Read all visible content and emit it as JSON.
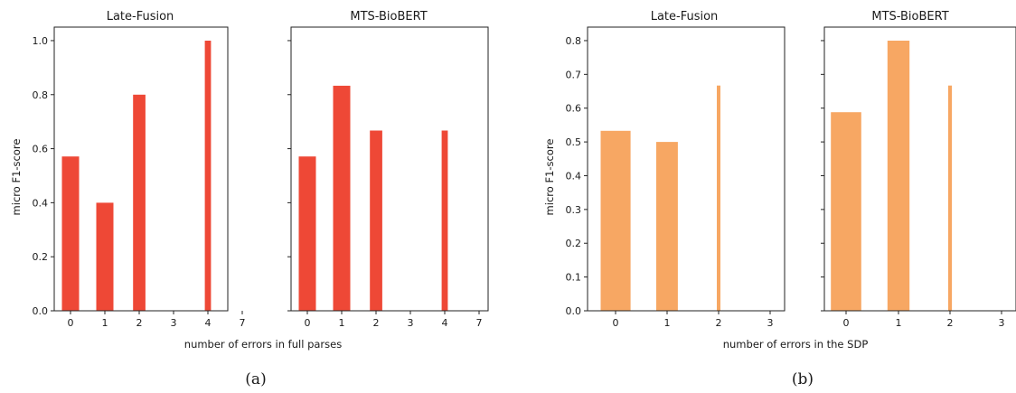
{
  "chart_data": [
    {
      "type": "bar",
      "caption": "(a)",
      "xlabel": "number of errors in full parses",
      "ylabel": "micro F1-score",
      "ylim": [
        0,
        1.05
      ],
      "yticks": [
        "0.0",
        "0.2",
        "0.4",
        "0.6",
        "0.8",
        "1.0"
      ],
      "categories": [
        "0",
        "1",
        "2",
        "3",
        "4",
        "7"
      ],
      "color": "#ee4836",
      "panels": [
        {
          "title": "Late-Fusion",
          "bars": [
            {
              "category": "0",
              "value": 0.571,
              "width": 0.5
            },
            {
              "category": "1",
              "value": 0.4,
              "width": 0.5
            },
            {
              "category": "2",
              "value": 0.8,
              "width": 0.36
            },
            {
              "category": "4",
              "value": 1.0,
              "width": 0.18
            }
          ]
        },
        {
          "title": "MTS-BioBERT",
          "bars": [
            {
              "category": "0",
              "value": 0.571,
              "width": 0.5
            },
            {
              "category": "1",
              "value": 0.833,
              "width": 0.5
            },
            {
              "category": "2",
              "value": 0.667,
              "width": 0.36
            },
            {
              "category": "4",
              "value": 0.667,
              "width": 0.18
            }
          ]
        }
      ]
    },
    {
      "type": "bar",
      "caption": "(b)",
      "xlabel": "number of errors in the SDP",
      "ylabel": "micro F1-score",
      "ylim": [
        0,
        0.84
      ],
      "yticks": [
        "0.0",
        "0.1",
        "0.2",
        "0.3",
        "0.4",
        "0.5",
        "0.6",
        "0.7",
        "0.8"
      ],
      "categories": [
        "0",
        "1",
        "2",
        "3"
      ],
      "color": "#f7a763",
      "panels": [
        {
          "title": "Late-Fusion",
          "bars": [
            {
              "category": "0",
              "value": 0.533,
              "width": 0.58
            },
            {
              "category": "1",
              "value": 0.5,
              "width": 0.42
            },
            {
              "category": "2",
              "value": 0.667,
              "width": 0.07
            }
          ]
        },
        {
          "title": "MTS-BioBERT",
          "bars": [
            {
              "category": "0",
              "value": 0.588,
              "width": 0.58
            },
            {
              "category": "1",
              "value": 0.8,
              "width": 0.42
            },
            {
              "category": "2",
              "value": 0.667,
              "width": 0.07
            }
          ]
        }
      ]
    }
  ]
}
